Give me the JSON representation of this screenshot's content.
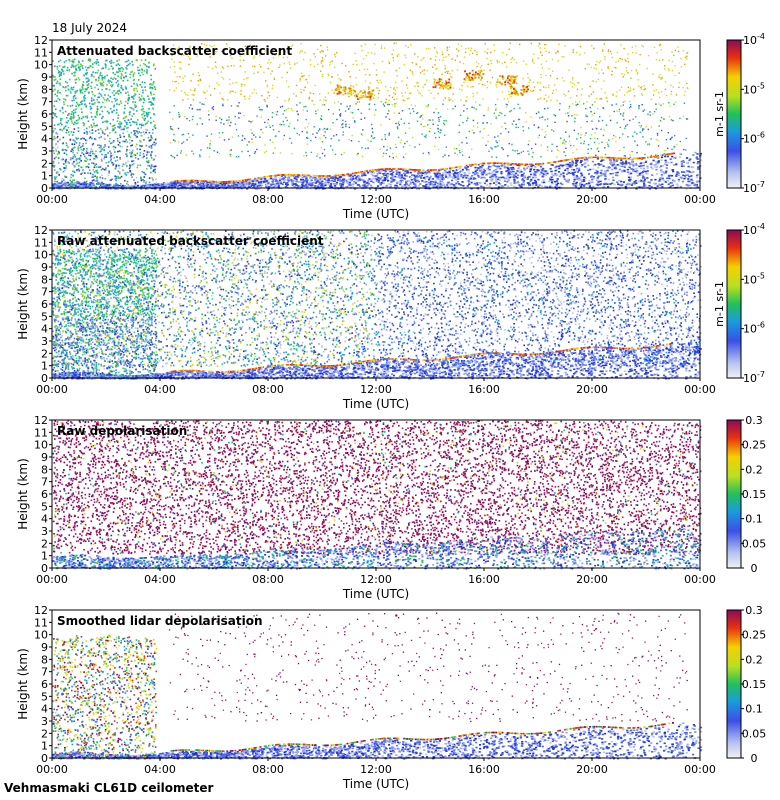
{
  "date_label": "18 July 2024",
  "footer_label": "Vehmasmaki CL61D ceilometer",
  "chart_data": [
    {
      "type": "heatmap",
      "title": "Attenuated backscatter coefficient",
      "xlabel": "Time (UTC)",
      "ylabel": "Height (km)",
      "xticks": [
        "00:00",
        "04:00",
        "08:00",
        "12:00",
        "16:00",
        "20:00",
        "00:00"
      ],
      "yticks": [
        "0",
        "1",
        "2",
        "3",
        "4",
        "5",
        "6",
        "7",
        "8",
        "9",
        "10",
        "11",
        "12"
      ],
      "ylim": [
        0,
        12
      ],
      "colorbar": {
        "scale": "log",
        "unit": "m-1 sr-1",
        "ticks": [
          "10-7",
          "10-6",
          "10-5",
          "10-4"
        ]
      }
    },
    {
      "type": "heatmap",
      "title": "Raw attenuated backscatter coefficient",
      "xlabel": "Time (UTC)",
      "ylabel": "Height (km)",
      "xticks": [
        "00:00",
        "04:00",
        "08:00",
        "12:00",
        "16:00",
        "20:00",
        "00:00"
      ],
      "yticks": [
        "0",
        "1",
        "2",
        "3",
        "4",
        "5",
        "6",
        "7",
        "8",
        "9",
        "10",
        "11",
        "12"
      ],
      "ylim": [
        0,
        12
      ],
      "colorbar": {
        "scale": "log",
        "unit": "m-1 sr-1",
        "ticks": [
          "10-7",
          "10-6",
          "10-5",
          "10-4"
        ]
      }
    },
    {
      "type": "heatmap",
      "title": "Raw depolarisation",
      "xlabel": "Time (UTC)",
      "ylabel": "Height (km)",
      "xticks": [
        "00:00",
        "04:00",
        "08:00",
        "12:00",
        "16:00",
        "20:00",
        "00:00"
      ],
      "yticks": [
        "0",
        "1",
        "2",
        "3",
        "4",
        "5",
        "6",
        "7",
        "8",
        "9",
        "10",
        "11",
        "12"
      ],
      "ylim": [
        0,
        12
      ],
      "colorbar": {
        "scale": "linear",
        "ticks": [
          "0",
          "0.05",
          "0.1",
          "0.15",
          "0.2",
          "0.25",
          "0.3"
        ],
        "range": [
          0,
          0.3
        ]
      }
    },
    {
      "type": "heatmap",
      "title": "Smoothed lidar depolarisation",
      "xlabel": "Time (UTC)",
      "ylabel": "Height (km)",
      "xticks": [
        "00:00",
        "04:00",
        "08:00",
        "12:00",
        "16:00",
        "20:00",
        "00:00"
      ],
      "yticks": [
        "0",
        "1",
        "2",
        "3",
        "4",
        "5",
        "6",
        "7",
        "8",
        "9",
        "10",
        "11",
        "12"
      ],
      "ylim": [
        0,
        12
      ],
      "colorbar": {
        "scale": "linear",
        "ticks": [
          "0",
          "0.05",
          "0.1",
          "0.15",
          "0.2",
          "0.25",
          "0.3"
        ],
        "range": [
          0,
          0.3
        ]
      }
    }
  ]
}
